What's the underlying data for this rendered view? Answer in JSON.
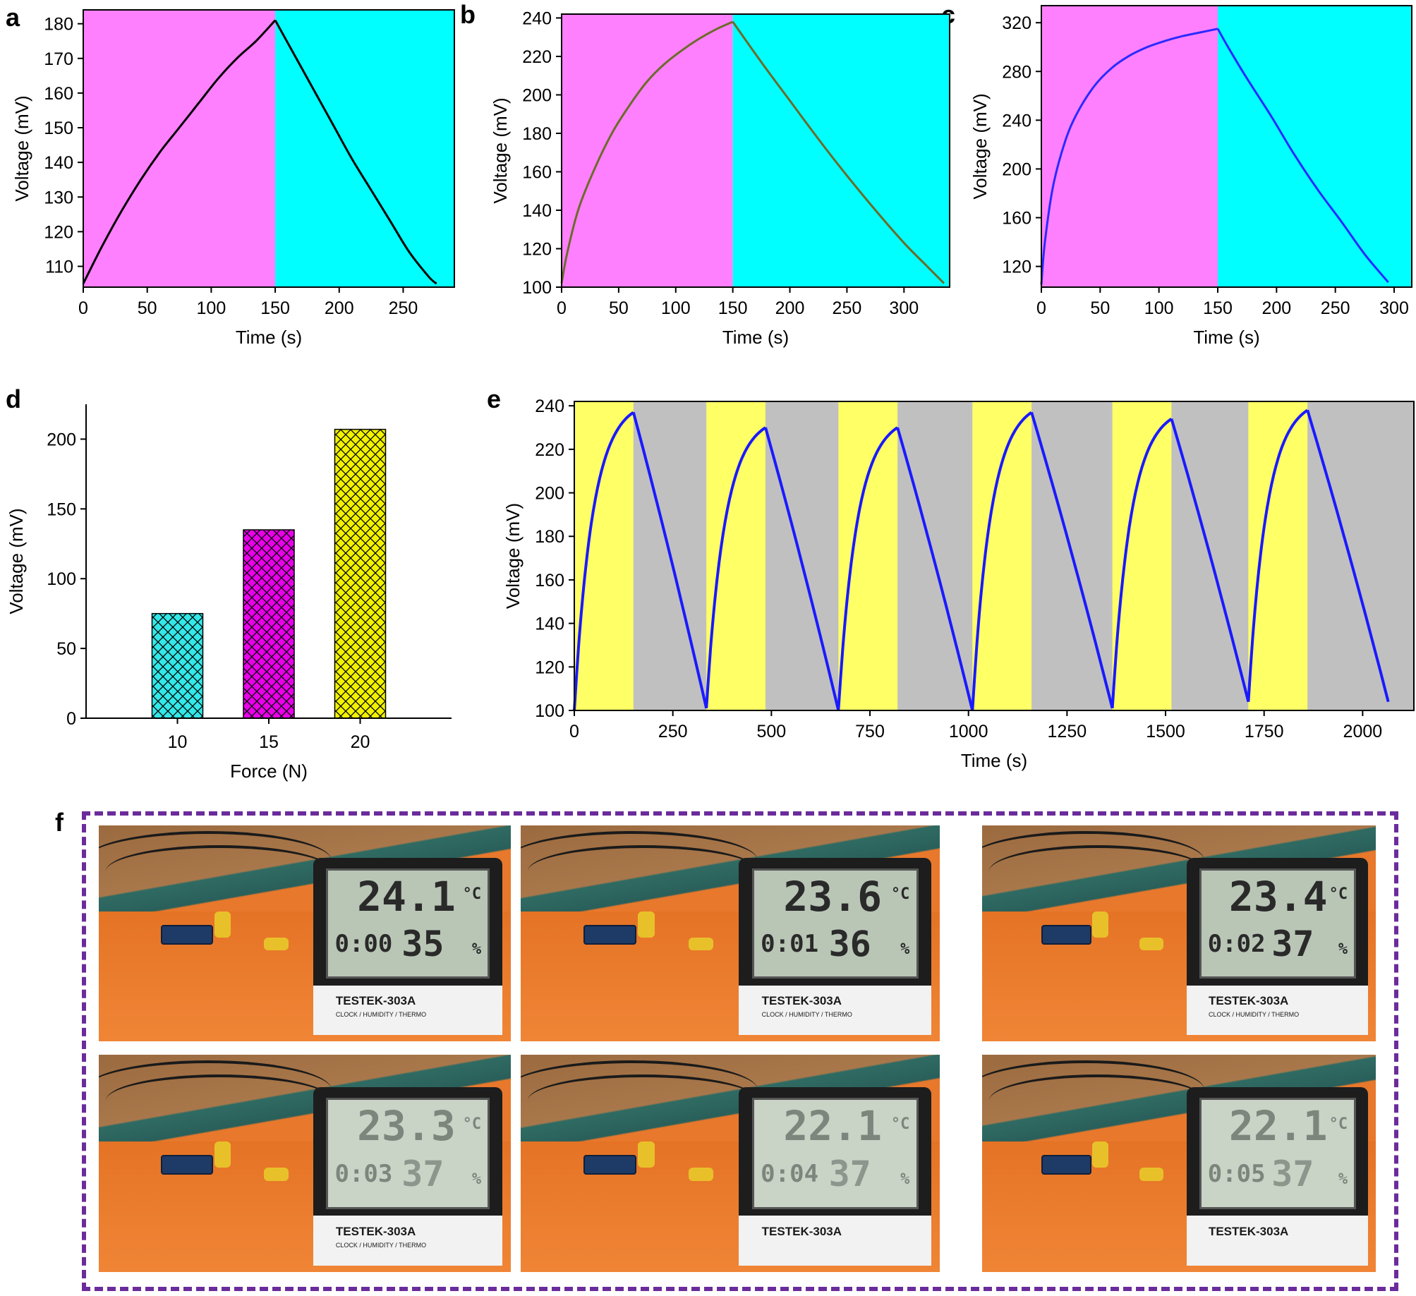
{
  "panel_labels": {
    "a": "a",
    "b": "b",
    "c": "c",
    "d": "d",
    "e": "e",
    "f": "f"
  },
  "chart_data": [
    {
      "id": "a",
      "type": "line",
      "xlabel": "Time (s)",
      "ylabel": "Voltage (mV)",
      "xlim": [
        0,
        290
      ],
      "ylim": [
        104,
        184
      ],
      "xticks": [
        0,
        50,
        100,
        150,
        200,
        250
      ],
      "yticks": [
        110,
        120,
        130,
        140,
        150,
        160,
        170,
        180
      ],
      "regions": [
        {
          "from": 0,
          "to": 150,
          "color": "#ff80ff"
        },
        {
          "from": 150,
          "to": 290,
          "color": "#00ffff"
        }
      ],
      "line_color": "#000000",
      "series": [
        {
          "x": [
            0,
            15,
            30,
            45,
            60,
            75,
            90,
            105,
            120,
            135,
            150,
            165,
            180,
            195,
            210,
            225,
            240,
            255,
            270,
            276
          ],
          "values": [
            105,
            116,
            126,
            135,
            143,
            150,
            157,
            164,
            170,
            175,
            181,
            171,
            161,
            151,
            141,
            132,
            123,
            114,
            107,
            105
          ]
        }
      ]
    },
    {
      "id": "b",
      "type": "line",
      "xlabel": "Time (s)",
      "ylabel": "Voltage (mV)",
      "xlim": [
        0,
        340
      ],
      "ylim": [
        100,
        242
      ],
      "xticks": [
        0,
        50,
        100,
        150,
        200,
        250,
        300
      ],
      "yticks": [
        100,
        120,
        140,
        160,
        180,
        200,
        220,
        240
      ],
      "regions": [
        {
          "from": 0,
          "to": 150,
          "color": "#ff80ff"
        },
        {
          "from": 150,
          "to": 340,
          "color": "#00ffff"
        }
      ],
      "line_color": "#6b6b2a",
      "series": [
        {
          "x": [
            0,
            5,
            15,
            30,
            45,
            60,
            75,
            90,
            105,
            120,
            135,
            150,
            175,
            200,
            225,
            250,
            275,
            300,
            320,
            335
          ],
          "values": [
            102,
            118,
            141,
            163,
            181,
            195,
            207,
            216,
            223,
            229,
            234,
            238,
            217,
            197,
            177,
            158,
            140,
            123,
            111,
            102
          ]
        }
      ]
    },
    {
      "id": "c",
      "type": "line",
      "xlabel": "Time (s)",
      "ylabel": "Voltage (mV)",
      "xlim": [
        0,
        315
      ],
      "ylim": [
        103,
        334
      ],
      "xticks": [
        0,
        50,
        100,
        150,
        200,
        250,
        300
      ],
      "yticks": [
        120,
        160,
        200,
        240,
        280,
        320
      ],
      "regions": [
        {
          "from": 0,
          "to": 150,
          "color": "#ff80ff"
        },
        {
          "from": 150,
          "to": 315,
          "color": "#00ffff"
        }
      ],
      "line_color": "#2a2aff",
      "series": [
        {
          "x": [
            0,
            3,
            10,
            20,
            30,
            45,
            60,
            75,
            90,
            105,
            120,
            135,
            150,
            160,
            175,
            195,
            215,
            235,
            255,
            275,
            295
          ],
          "values": [
            105,
            140,
            186,
            222,
            245,
            268,
            283,
            293,
            300,
            305,
            309,
            312,
            315,
            298,
            274,
            244,
            212,
            183,
            157,
            130,
            107
          ]
        }
      ]
    },
    {
      "id": "d",
      "type": "bar",
      "xlabel": "Force (N)",
      "ylabel": "Voltage (mV)",
      "categories": [
        "10",
        "15",
        "20"
      ],
      "values": [
        75,
        135,
        207
      ],
      "ylim": [
        0,
        225
      ],
      "yticks": [
        0,
        50,
        100,
        150,
        200
      ],
      "colors": [
        "#33e8e8",
        "#e800e8",
        "#f2f200"
      ],
      "hatch": "crosshatch"
    },
    {
      "id": "e",
      "type": "line",
      "xlabel": "Time (s)",
      "ylabel": "Voltage (mV)",
      "xlim": [
        0,
        2130
      ],
      "ylim": [
        100,
        242
      ],
      "xticks": [
        0,
        250,
        500,
        750,
        1000,
        1250,
        1500,
        1750,
        2000
      ],
      "yticks": [
        100,
        120,
        140,
        160,
        180,
        200,
        220,
        240
      ],
      "region_colors": {
        "charge": "#ffff66",
        "discharge": "#c0c0c0"
      },
      "cycles": [
        {
          "start": 0,
          "peak_t": 150,
          "peak_v": 237,
          "end_t": 335,
          "end_v": 101
        },
        {
          "start": 335,
          "peak_t": 485,
          "peak_v": 230,
          "end_t": 670,
          "end_v": 100
        },
        {
          "start": 670,
          "peak_t": 820,
          "peak_v": 230,
          "end_t": 1010,
          "end_v": 100
        },
        {
          "start": 1010,
          "peak_t": 1160,
          "peak_v": 237,
          "end_t": 1365,
          "end_v": 101
        },
        {
          "start": 1365,
          "peak_t": 1515,
          "peak_v": 234,
          "end_t": 1710,
          "end_v": 104
        },
        {
          "start": 1710,
          "peak_t": 1860,
          "peak_v": 238,
          "end_t": 2065,
          "end_v": 104
        }
      ],
      "line_color": "#1a1aff"
    }
  ],
  "photos": [
    {
      "big": "24.1",
      "unit": "°C",
      "time": "0:00",
      "humid": "35",
      "pct": "%",
      "brand": "TESTEK-303A",
      "tagline": "CLOCK / HUMIDITY / THERMO",
      "faded": false
    },
    {
      "big": "23.6",
      "unit": "°C",
      "time": "0:01",
      "humid": "36",
      "pct": "%",
      "brand": "TESTEK-303A",
      "tagline": "CLOCK / HUMIDITY / THERMO",
      "faded": false
    },
    {
      "big": "23.4",
      "unit": "°C",
      "time": "0:02",
      "humid": "37",
      "pct": "%",
      "brand": "TESTEK-303A",
      "tagline": "CLOCK / HUMIDITY / THERMO",
      "faded": false
    },
    {
      "big": "23.3",
      "unit": "°C",
      "time": "0:03",
      "humid": "37",
      "pct": "%",
      "brand": "TESTEK-303A",
      "tagline": "CLOCK / HUMIDITY / THERMO",
      "faded": true
    },
    {
      "big": "22.1",
      "unit": "°C",
      "time": "0:04",
      "humid": "37",
      "pct": "%",
      "brand": "TESTEK-303A",
      "tagline": "",
      "faded": true
    },
    {
      "big": "22.1",
      "unit": "°C",
      "time": "0:05",
      "humid": "37",
      "pct": "%",
      "brand": "TESTEK-303A",
      "tagline": "",
      "faded": true
    }
  ]
}
